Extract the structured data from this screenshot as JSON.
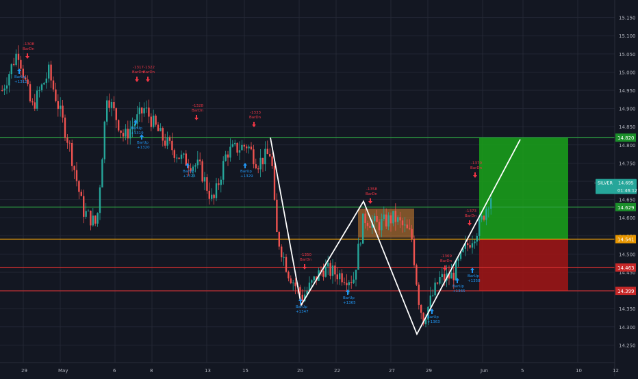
{
  "symbol": "SILVER",
  "last_price": "14.695",
  "countdown": "01:46:12",
  "colors": {
    "background": "#131722",
    "grid": "#232734",
    "up": "#26a69a",
    "down": "#ef5350",
    "green_line": "#2ea043",
    "orange_line": "#f0a30a",
    "red_line": "#d32f2f",
    "axis_text": "#b2b5be",
    "buy_signal": "#2196f3",
    "sell_signal": "#f23645",
    "tp_zone": "#1aa31a",
    "sl_zone": "#a31515",
    "range_box": "#c77b30",
    "pattern": "#ffffff",
    "price_tag": "#26a69a"
  },
  "chart_data": {
    "type": "candlestick",
    "y_axis_ticks": [
      "15.150",
      "15.100",
      "15.050",
      "15.000",
      "14.950",
      "14.900",
      "14.850",
      "14.800",
      "14.750",
      "14.700",
      "14.650",
      "14.600",
      "14.550",
      "14.500",
      "14.450",
      "14.400",
      "14.350",
      "14.300",
      "14.250"
    ],
    "x_axis_ticks": [
      "29",
      "May",
      "6",
      "8",
      "13",
      "15",
      "20",
      "22",
      "27",
      "29",
      "Jun",
      "5",
      "10",
      "12"
    ],
    "ylim": [
      14.23,
      15.17
    ],
    "horizontal_levels": [
      {
        "value": 14.82,
        "label": "14.820",
        "color": "green"
      },
      {
        "value": 14.629,
        "label": "14.629",
        "color": "green"
      },
      {
        "value": 14.541,
        "label": "14.541",
        "color": "orange"
      },
      {
        "value": 14.463,
        "label": "14.463",
        "color": "red"
      },
      {
        "value": 14.399,
        "label": "14.399",
        "color": "red"
      }
    ],
    "zones": [
      {
        "name": "take-profit",
        "from": 14.541,
        "to": 14.82
      },
      {
        "name": "stop-loss",
        "from": 14.399,
        "to": 14.541
      },
      {
        "name": "range-box",
        "from": 14.545,
        "to": 14.625
      }
    ],
    "pattern_points": [
      {
        "x": "May 16",
        "y": 14.82
      },
      {
        "x": "May 20",
        "y": 14.36
      },
      {
        "x": "May 23",
        "y": 14.645
      },
      {
        "x": "May 28",
        "y": 14.28
      },
      {
        "x": "Jun 5",
        "y": 14.815
      }
    ],
    "signals": [
      {
        "type": "BarDn",
        "id": "-1308",
        "side": "sell"
      },
      {
        "type": "BarUp",
        "id": "+1312",
        "side": "buy"
      },
      {
        "type": "BarDn",
        "id": "-1317",
        "side": "sell"
      },
      {
        "type": "BarDn",
        "id": "-1322",
        "side": "sell"
      },
      {
        "type": "BarUp",
        "id": "+1319",
        "side": "buy"
      },
      {
        "type": "BarUp",
        "id": "+1320",
        "side": "buy"
      },
      {
        "type": "BarDn",
        "id": "-1328",
        "side": "sell"
      },
      {
        "type": "BarUp",
        "id": "+1323",
        "side": "buy"
      },
      {
        "type": "BarDn",
        "id": "-1333",
        "side": "sell"
      },
      {
        "type": "BarUp",
        "id": "+1329",
        "side": "buy"
      },
      {
        "type": "BarUp",
        "id": "+1347",
        "side": "buy"
      },
      {
        "type": "BarDn",
        "id": "-1350",
        "side": "sell"
      },
      {
        "type": "BarUp",
        "id": "+1365",
        "side": "buy"
      },
      {
        "type": "BarDn",
        "id": "-1358",
        "side": "sell"
      },
      {
        "type": "BarUp",
        "id": "+1363",
        "side": "buy"
      },
      {
        "type": "BarDn",
        "id": "-1369",
        "side": "sell"
      },
      {
        "type": "BarUp",
        "id": "+1365",
        "side": "buy"
      },
      {
        "type": "BarUp",
        "id": "+1358",
        "side": "buy"
      },
      {
        "type": "BarDn",
        "id": "-1370",
        "side": "sell"
      },
      {
        "type": "BarDn",
        "id": "-1373",
        "side": "sell"
      }
    ]
  }
}
